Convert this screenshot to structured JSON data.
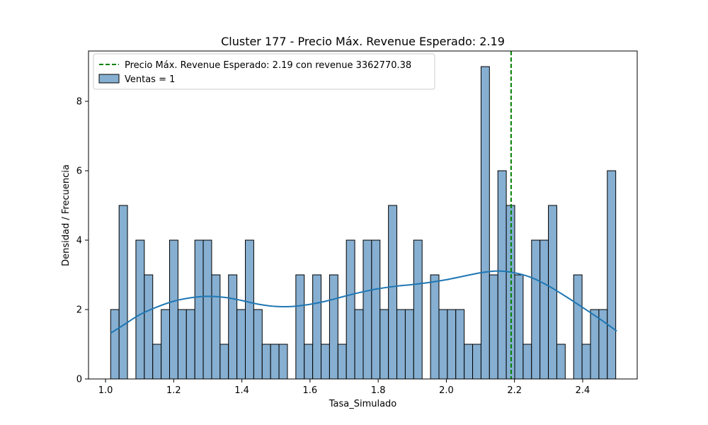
{
  "chart_data": {
    "type": "bar",
    "title": "Cluster 177 - Precio Máx. Revenue Esperado: 2.19",
    "xlabel": "Tasa_Simulado",
    "ylabel": "Densidad / Frecuencia",
    "xlim": [
      0.95,
      2.56
    ],
    "ylim": [
      0,
      9.45
    ],
    "xticks": [
      1.0,
      1.2,
      1.4,
      1.6,
      1.8,
      2.0,
      2.2,
      2.4
    ],
    "xtick_labels": [
      "1.0",
      "1.2",
      "1.4",
      "1.6",
      "1.8",
      "2.0",
      "2.2",
      "2.4"
    ],
    "yticks": [
      0,
      2,
      4,
      6,
      8
    ],
    "ytick_labels": [
      "0",
      "2",
      "4",
      "6",
      "8"
    ],
    "bin_start": 1.015,
    "bin_width": 0.0247,
    "counts": [
      2,
      5,
      0,
      4,
      3,
      1,
      2,
      4,
      2,
      2,
      4,
      4,
      3,
      1,
      3,
      2,
      4,
      2,
      1,
      1,
      1,
      0,
      3,
      1,
      3,
      1,
      3,
      1,
      4,
      2,
      4,
      4,
      2,
      5,
      2,
      2,
      4,
      0,
      3,
      2,
      2,
      2,
      1,
      1,
      9,
      3,
      6,
      5,
      3,
      1,
      4,
      4,
      5,
      1,
      0,
      3,
      1,
      2,
      2,
      6
    ],
    "kde": {
      "x": [
        1.015,
        1.06,
        1.1,
        1.15,
        1.2,
        1.25,
        1.3,
        1.35,
        1.4,
        1.45,
        1.5,
        1.55,
        1.6,
        1.65,
        1.7,
        1.75,
        1.8,
        1.85,
        1.9,
        1.95,
        2.0,
        2.05,
        2.1,
        2.15,
        2.2,
        2.25,
        2.3,
        2.35,
        2.4,
        2.45,
        2.5
      ],
      "y": [
        1.32,
        1.6,
        1.85,
        2.07,
        2.24,
        2.34,
        2.38,
        2.35,
        2.26,
        2.15,
        2.09,
        2.09,
        2.15,
        2.25,
        2.38,
        2.5,
        2.6,
        2.67,
        2.72,
        2.78,
        2.86,
        2.96,
        3.06,
        3.11,
        3.06,
        2.92,
        2.68,
        2.38,
        2.06,
        1.73,
        1.38
      ]
    },
    "vline": {
      "x": 2.19,
      "color": "#008000",
      "label": "Precio Máx. Revenue Esperado: 2.19 con revenue 3362770.38"
    },
    "legend": {
      "position": "top-left",
      "entries": [
        {
          "label": "Precio Máx. Revenue Esperado: 2.19 con revenue 3362770.38",
          "kind": "dashed-line",
          "color": "#008000"
        },
        {
          "label": "Ventas = 1",
          "kind": "patch",
          "color": "#86afd1"
        }
      ]
    },
    "colors": {
      "bar_fill": "#86afd1",
      "bar_edge": "#000000",
      "kde_line": "#1f77b4"
    },
    "grid": false
  }
}
